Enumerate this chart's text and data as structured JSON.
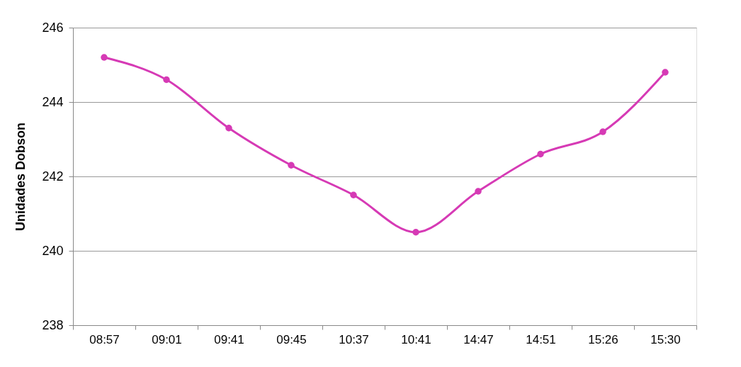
{
  "chart_data": {
    "type": "line",
    "ylabel": "Unidades Dobson",
    "categories": [
      "08:57",
      "09:01",
      "09:41",
      "09:45",
      "10:37",
      "10:41",
      "14:47",
      "14:51",
      "15:26",
      "15:30"
    ],
    "series": [
      {
        "color": "#d63ab5",
        "values": [
          245.2,
          244.6,
          243.3,
          242.3,
          241.5,
          240.5,
          241.6,
          242.6,
          243.2,
          244.8
        ]
      }
    ],
    "ylim": [
      238,
      246
    ],
    "yticks": [
      238,
      240,
      242,
      244,
      246
    ],
    "grid": "y",
    "marker": "circle",
    "line_style": "solid",
    "legend": false
  }
}
